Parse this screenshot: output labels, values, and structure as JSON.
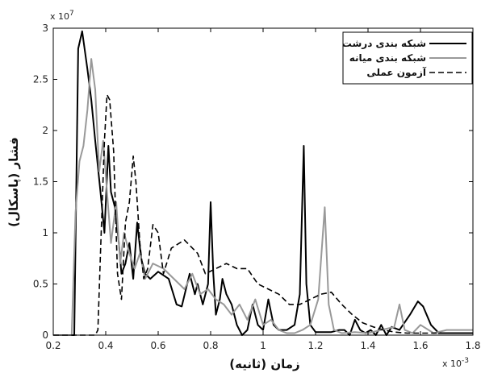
{
  "chart_data": {
    "type": "line",
    "xlabel": "زمان (ثانیه)",
    "ylabel": "فشار (پاسکال)",
    "x_multiplier_label": "x 10",
    "x_multiplier_exp": "-3",
    "y_multiplier_label": "x 10",
    "y_multiplier_exp": "7",
    "xlim": [
      0.2,
      1.8
    ],
    "ylim": [
      0,
      3
    ],
    "x_ticks": [
      0.2,
      0.4,
      0.6,
      0.8,
      1,
      1.2,
      1.4,
      1.6,
      1.8
    ],
    "x_tick_labels": [
      "0.2",
      "0.4",
      "0.6",
      "0.8",
      "1",
      "1.2",
      "1.4",
      "1.6",
      "1.8"
    ],
    "y_ticks": [
      0,
      0.5,
      1,
      1.5,
      2,
      2.5,
      3
    ],
    "y_tick_labels": [
      "0",
      "0.5",
      "1",
      "1.5",
      "2",
      "2.5",
      "3"
    ],
    "grid": false,
    "legend_position": "top-right",
    "series": [
      {
        "name": "شبکه بندی درشت",
        "color": "#000000",
        "dash": "solid",
        "x": [
          0.2,
          0.28,
          0.295,
          0.31,
          0.33,
          0.345,
          0.36,
          0.38,
          0.395,
          0.41,
          0.42,
          0.435,
          0.45,
          0.46,
          0.475,
          0.49,
          0.505,
          0.52,
          0.535,
          0.55,
          0.57,
          0.6,
          0.64,
          0.67,
          0.69,
          0.72,
          0.74,
          0.75,
          0.77,
          0.79,
          0.8,
          0.81,
          0.82,
          0.835,
          0.845,
          0.86,
          0.88,
          0.9,
          0.92,
          0.94,
          0.96,
          0.98,
          1.0,
          1.02,
          1.04,
          1.06,
          1.09,
          1.12,
          1.14,
          1.155,
          1.165,
          1.18,
          1.2,
          1.23,
          1.26,
          1.29,
          1.31,
          1.33,
          1.35,
          1.37,
          1.39,
          1.41,
          1.43,
          1.45,
          1.47,
          1.49,
          1.52,
          1.56,
          1.59,
          1.61,
          1.64,
          1.67,
          1.7,
          1.8
        ],
        "y": [
          0,
          0,
          2.8,
          2.97,
          2.6,
          2.3,
          1.9,
          1.4,
          1.0,
          1.85,
          1.4,
          1.25,
          0.9,
          0.6,
          0.7,
          0.9,
          0.55,
          1.1,
          0.75,
          0.6,
          0.55,
          0.62,
          0.55,
          0.3,
          0.28,
          0.6,
          0.4,
          0.5,
          0.3,
          0.5,
          1.3,
          0.6,
          0.2,
          0.35,
          0.55,
          0.4,
          0.3,
          0.1,
          0.0,
          0.05,
          0.3,
          0.1,
          0.05,
          0.35,
          0.1,
          0.05,
          0.05,
          0.1,
          0.4,
          1.85,
          0.5,
          0.1,
          0.03,
          0.03,
          0.03,
          0.05,
          0.05,
          0.0,
          0.15,
          0.05,
          0.02,
          0.05,
          0.0,
          0.1,
          0.0,
          0.08,
          0.05,
          0.2,
          0.33,
          0.28,
          0.1,
          0.02,
          0.02,
          0.02
        ]
      },
      {
        "name": "شبکه بندی میانه",
        "color": "#999999",
        "dash": "solid",
        "x": [
          0.2,
          0.27,
          0.285,
          0.3,
          0.315,
          0.33,
          0.345,
          0.36,
          0.375,
          0.39,
          0.405,
          0.42,
          0.44,
          0.455,
          0.47,
          0.49,
          0.51,
          0.53,
          0.55,
          0.58,
          0.62,
          0.66,
          0.7,
          0.73,
          0.76,
          0.79,
          0.82,
          0.85,
          0.88,
          0.91,
          0.94,
          0.97,
          1.0,
          1.03,
          1.06,
          1.09,
          1.12,
          1.15,
          1.18,
          1.21,
          1.235,
          1.25,
          1.27,
          1.3,
          1.35,
          1.4,
          1.45,
          1.5,
          1.52,
          1.54,
          1.57,
          1.6,
          1.65,
          1.7,
          1.8
        ],
        "y": [
          0,
          0,
          1.2,
          1.7,
          1.85,
          2.2,
          2.7,
          2.4,
          1.6,
          1.9,
          1.4,
          0.9,
          1.3,
          0.7,
          1.0,
          0.8,
          0.65,
          0.8,
          0.55,
          0.7,
          0.65,
          0.55,
          0.45,
          0.6,
          0.4,
          0.45,
          0.35,
          0.3,
          0.2,
          0.3,
          0.15,
          0.35,
          0.1,
          0.15,
          0.05,
          0.02,
          0.02,
          0.05,
          0.1,
          0.35,
          1.25,
          0.3,
          0.05,
          0.02,
          0.03,
          0.02,
          0.05,
          0.08,
          0.3,
          0.05,
          0.02,
          0.1,
          0.02,
          0.05,
          0.05
        ]
      },
      {
        "name": "آزمون عملی",
        "color": "#000000",
        "dash": "dashed",
        "x": [
          0.2,
          0.36,
          0.37,
          0.38,
          0.395,
          0.405,
          0.415,
          0.43,
          0.445,
          0.46,
          0.475,
          0.49,
          0.505,
          0.515,
          0.53,
          0.545,
          0.56,
          0.58,
          0.6,
          0.62,
          0.65,
          0.7,
          0.75,
          0.78,
          0.82,
          0.86,
          0.9,
          0.94,
          0.98,
          1.02,
          1.06,
          1.1,
          1.14,
          1.18,
          1.22,
          1.26,
          1.3,
          1.34,
          1.38,
          1.42,
          1.46,
          1.5,
          1.55,
          1.6,
          1.7,
          1.8
        ],
        "y": [
          0,
          0,
          0.05,
          0.8,
          1.9,
          2.35,
          2.3,
          1.8,
          0.6,
          0.35,
          1.1,
          1.3,
          1.75,
          1.5,
          0.9,
          0.55,
          0.65,
          1.08,
          1.0,
          0.6,
          0.85,
          0.93,
          0.8,
          0.6,
          0.65,
          0.7,
          0.65,
          0.65,
          0.5,
          0.45,
          0.4,
          0.3,
          0.3,
          0.35,
          0.4,
          0.42,
          0.3,
          0.2,
          0.12,
          0.08,
          0.05,
          0.03,
          0.02,
          0.02,
          0.02,
          0.02
        ]
      }
    ]
  }
}
